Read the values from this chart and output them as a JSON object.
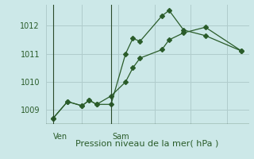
{
  "xlabel": "Pression niveau de la mer( hPa )",
  "background_color": "#cce8e8",
  "grid_color": "#b0cccc",
  "line_color": "#2a5c2a",
  "axis_color": "#2a4a2a",
  "ylim": [
    1008.5,
    1012.75
  ],
  "yticks": [
    1009,
    1010,
    1011,
    1012
  ],
  "xlim": [
    0,
    14
  ],
  "ven_x": 0.5,
  "sam_x": 4.5,
  "series1_x": [
    0.5,
    1.5,
    2.5,
    3.0,
    3.5,
    4.5,
    5.5,
    6.0,
    6.5,
    8.0,
    8.5,
    9.5,
    11.0,
    13.5
  ],
  "series1_y": [
    1008.7,
    1009.3,
    1009.15,
    1009.35,
    1009.2,
    1009.2,
    1011.0,
    1011.55,
    1011.45,
    1012.35,
    1012.55,
    1011.85,
    1011.65,
    1011.1
  ],
  "series2_x": [
    0.5,
    1.5,
    2.5,
    3.0,
    3.5,
    4.5,
    5.5,
    6.0,
    6.5,
    8.0,
    8.5,
    9.5,
    11.0,
    13.5
  ],
  "series2_y": [
    1008.7,
    1009.3,
    1009.15,
    1009.35,
    1009.2,
    1009.5,
    1010.0,
    1010.5,
    1010.85,
    1011.15,
    1011.5,
    1011.75,
    1011.95,
    1011.1
  ],
  "fontsize_xlabel": 8,
  "fontsize_ticks": 7,
  "fontsize_day": 7,
  "marker_size": 3
}
